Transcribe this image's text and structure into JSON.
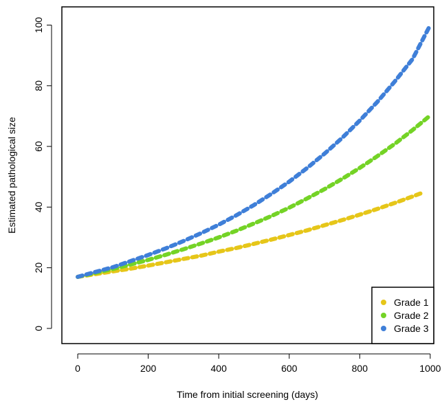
{
  "chart_data": {
    "type": "line",
    "title": "",
    "xlabel": "Time from initial screening (days)",
    "ylabel": "Estimated pathological size",
    "xlim": [
      -45,
      1010
    ],
    "ylim": [
      -5,
      106
    ],
    "x_ticks": [
      "0",
      "200",
      "400",
      "600",
      "800",
      "1000"
    ],
    "y_ticks": [
      "0",
      "20",
      "40",
      "60",
      "80",
      "100"
    ],
    "grid": false,
    "legend_position": "bottom-right",
    "line_style": "dashed",
    "x": [
      0,
      50,
      100,
      150,
      200,
      250,
      300,
      350,
      400,
      450,
      500,
      550,
      600,
      650,
      700,
      750,
      800,
      850,
      900,
      950,
      1000
    ],
    "series": [
      {
        "name": "Grade 1",
        "color": "#e6c619",
        "values": [
          17.0,
          17.9,
          18.8,
          19.7,
          20.7,
          21.8,
          22.9,
          24.0,
          25.3,
          26.5,
          27.9,
          29.3,
          30.8,
          32.3,
          34.0,
          35.7,
          37.5,
          39.4,
          41.4,
          43.5,
          45.7
        ],
        "x_end": 975
      },
      {
        "name": "Grade 2",
        "color": "#74d326",
        "values": [
          17.0,
          18.3,
          19.6,
          21.1,
          22.6,
          24.3,
          26.1,
          28.0,
          30.0,
          32.2,
          34.6,
          37.1,
          39.8,
          42.8,
          45.9,
          49.3,
          52.9,
          56.8,
          60.9,
          65.4,
          70.2
        ],
        "x_end": 1000
      },
      {
        "name": "Grade 3",
        "color": "#3f7fd8",
        "values": [
          17.0,
          18.6,
          20.2,
          22.2,
          24.2,
          26.4,
          28.8,
          31.4,
          34.2,
          37.3,
          40.7,
          44.4,
          48.4,
          52.8,
          57.6,
          62.8,
          68.5,
          74.7,
          81.5,
          88.8,
          100.0
        ],
        "x_end": 1000
      }
    ]
  }
}
